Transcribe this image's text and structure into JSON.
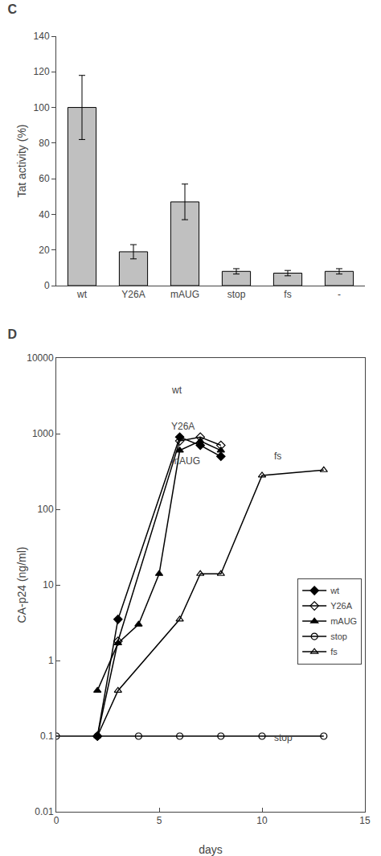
{
  "chart_data": [
    {
      "type": "bar",
      "title": "C",
      "categories": [
        "wt",
        "Y26A",
        "mAUG",
        "stop",
        "fs",
        "-"
      ],
      "values": [
        100,
        19,
        47,
        8,
        7,
        8
      ],
      "errors": [
        18,
        4,
        10,
        1.5,
        1.5,
        1.5
      ],
      "color": "#c0c0c0",
      "ylabel": "Tat activity (%)",
      "ylim": [
        0,
        140
      ],
      "yticks": [
        0,
        20,
        40,
        60,
        80,
        100,
        120,
        140
      ],
      "grid": false
    },
    {
      "type": "line",
      "title": "D",
      "xlabel": "days",
      "ylabel": "CA-p24 (ng/ml)",
      "log": "y",
      "xlim": [
        0,
        15
      ],
      "xticks": [
        0,
        5,
        10,
        15
      ],
      "ylim": [
        0.01,
        10000
      ],
      "yticks": [
        0.01,
        0.1,
        1,
        10,
        100,
        1000,
        10000
      ],
      "grid": false,
      "legend": "right",
      "series": [
        {
          "name": "wt",
          "x": [
            2,
            3,
            6,
            7,
            8
          ],
          "values": [
            0.1,
            3.5,
            900,
            700,
            500
          ],
          "color": "#000000",
          "marker": "diamond"
        },
        {
          "name": "Y26A",
          "x": [
            2,
            3,
            6,
            7,
            8
          ],
          "values": [
            0.1,
            1.8,
            800,
            900,
            700
          ],
          "color": "#000000",
          "marker": "diamond-open"
        },
        {
          "name": "mAUG",
          "x": [
            2,
            3,
            4,
            5,
            6,
            7,
            8
          ],
          "values": [
            0.4,
            1.7,
            3.0,
            14,
            600,
            800,
            600
          ],
          "color": "#000000",
          "marker": "triangle-up"
        },
        {
          "name": "stop",
          "x": [
            0,
            2,
            4,
            6,
            8,
            10,
            13
          ],
          "values": [
            0.1,
            0.1,
            0.1,
            0.1,
            0.1,
            0.1,
            0.1
          ],
          "color": "#000000",
          "marker": "circle-open"
        },
        {
          "name": "fs",
          "x": [
            2,
            3,
            6,
            7,
            8,
            10,
            13
          ],
          "values": [
            0.1,
            0.4,
            3.5,
            14,
            14,
            280,
            330
          ],
          "color": "#000000",
          "marker": "triangle-up-open"
        }
      ],
      "annotations": [
        {
          "text": "wt",
          "x": 5.5,
          "y": 3000
        },
        {
          "text": "Y26A",
          "x": 5.5,
          "y": 1000
        },
        {
          "text": "mAUG",
          "x": 5.5,
          "y": 350
        },
        {
          "text": "fs",
          "x": 10.5,
          "y": 400
        },
        {
          "text": "stop",
          "x": 10.5,
          "y": 0.076
        }
      ]
    }
  ]
}
